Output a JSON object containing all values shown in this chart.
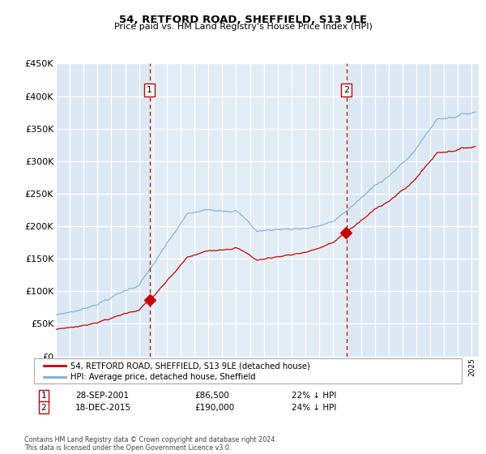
{
  "title": "54, RETFORD ROAD, SHEFFIELD, S13 9LE",
  "subtitle": "Price paid vs. HM Land Registry's House Price Index (HPI)",
  "fig_bg_color": "#ffffff",
  "plot_bg_color": "#dce9f5",
  "grid_color": "#ffffff",
  "hpi_color": "#7bafd4",
  "price_color": "#cc0000",
  "sale1_t": 2001.75,
  "sale2_t": 2015.958,
  "sale1_price": 86500,
  "sale2_price": 190000,
  "sale1_label": "28-SEP-2001",
  "sale2_label": "18-DEC-2015",
  "sale1_hpi_pct": "22% ↓ HPI",
  "sale2_hpi_pct": "24% ↓ HPI",
  "legend_line1": "54, RETFORD ROAD, SHEFFIELD, S13 9LE (detached house)",
  "legend_line2": "HPI: Average price, detached house, Sheffield",
  "footnote": "Contains HM Land Registry data © Crown copyright and database right 2024.\nThis data is licensed under the Open Government Licence v3.0.",
  "ylim_min": 0,
  "ylim_max": 450000,
  "ytick_step": 50000,
  "xstart": 1995,
  "xend": 2025
}
